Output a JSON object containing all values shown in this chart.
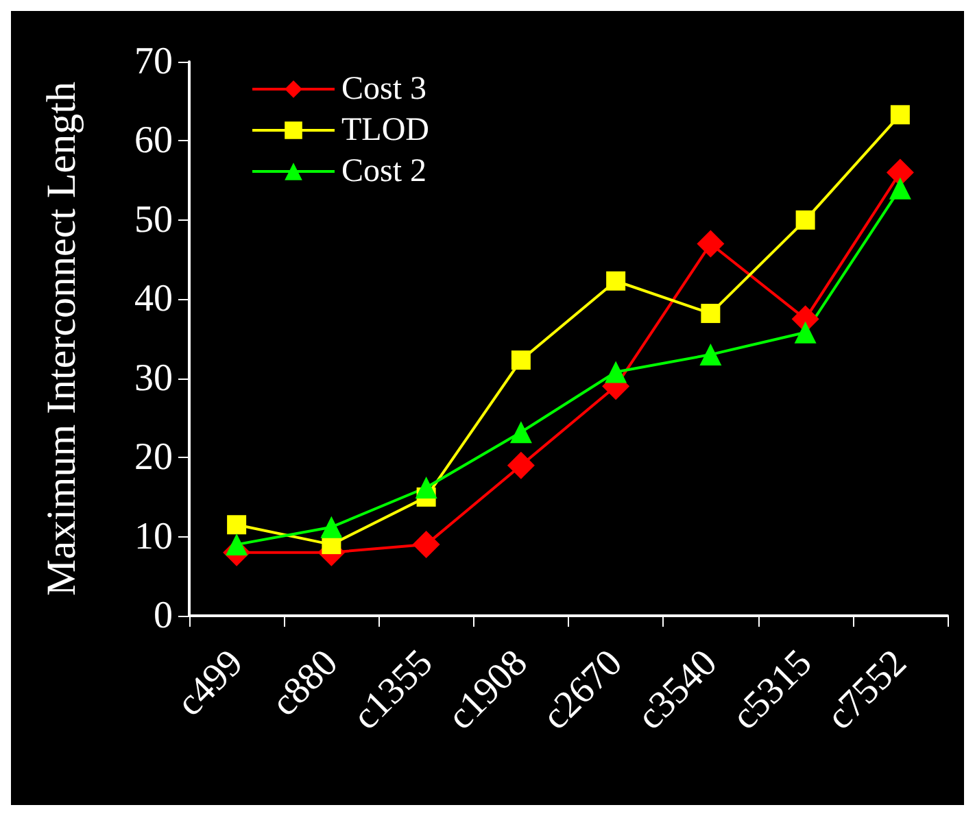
{
  "chart_data": {
    "type": "line",
    "ylabel": "Maximum Interconnect Length",
    "categories": [
      "c499",
      "c880",
      "c1355",
      "c1908",
      "c2670",
      "c3540",
      "c5315",
      "c7552"
    ],
    "series": [
      {
        "name": "Cost 3",
        "color": "#ff0000",
        "marker": "diamond",
        "values": [
          8,
          8,
          9,
          19,
          29,
          47,
          37.5,
          56
        ]
      },
      {
        "name": "TLOD",
        "color": "#ffff00",
        "marker": "square",
        "values": [
          11.5,
          9,
          15,
          32.3,
          42.3,
          38.2,
          50,
          63.3
        ]
      },
      {
        "name": "Cost 2",
        "color": "#00ff00",
        "marker": "triangle",
        "values": [
          9,
          11.2,
          16.2,
          23.2,
          30.8,
          33,
          35.8,
          54
        ]
      }
    ],
    "ylim": [
      0,
      70
    ],
    "yticks": [
      0,
      10,
      20,
      30,
      40,
      50,
      60,
      70
    ],
    "grid": false,
    "legend": "top left",
    "line_style": "solid"
  }
}
